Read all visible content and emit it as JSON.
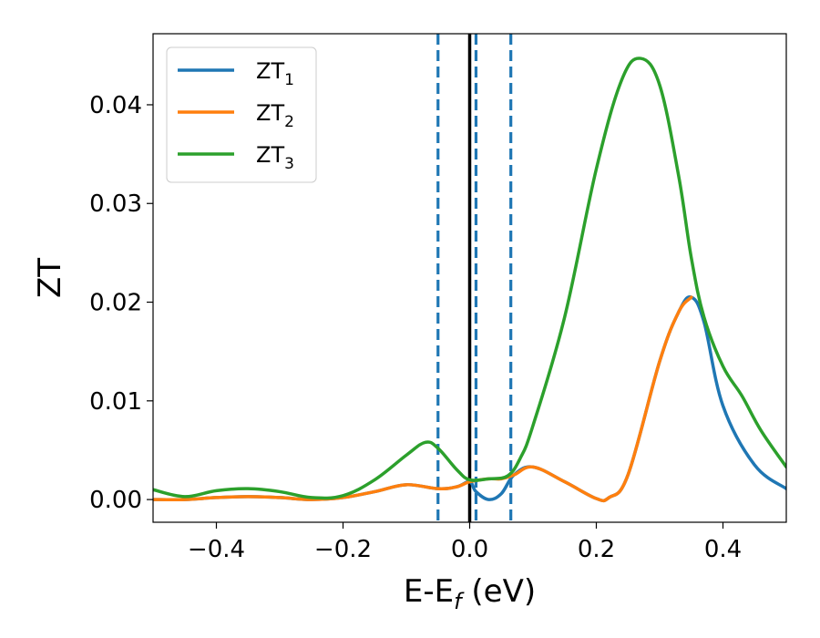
{
  "chart_data": {
    "type": "line",
    "xlabel": "E-E",
    "xlabel_sub": "f",
    "xlabel_unit": " (eV)",
    "ylabel": "ZT",
    "xlim": [
      -0.5,
      0.5
    ],
    "ylim": [
      -0.0023,
      0.0472
    ],
    "xticks": [
      -0.4,
      -0.2,
      0.0,
      0.2,
      0.4
    ],
    "xtick_labels": [
      "−0.4",
      "−0.2",
      "0.0",
      "0.2",
      "0.4"
    ],
    "yticks": [
      0.0,
      0.01,
      0.02,
      0.03,
      0.04
    ],
    "ytick_labels": [
      "0.00",
      "0.01",
      "0.02",
      "0.03",
      "0.04"
    ],
    "grid": false,
    "legend_position": "top-left",
    "vlines": [
      {
        "x": 0.0,
        "style": "solid",
        "color": "#000000"
      },
      {
        "x": -0.05,
        "style": "dashed",
        "color": "#1f77b4"
      },
      {
        "x": 0.01,
        "style": "dashed",
        "color": "#1f77b4"
      },
      {
        "x": 0.065,
        "style": "dashed",
        "color": "#1f77b4"
      }
    ],
    "series": [
      {
        "name": "ZT",
        "subscript": "1",
        "color": "#1f77b4",
        "x": [
          -0.5,
          -0.45,
          -0.4,
          -0.35,
          -0.3,
          -0.25,
          -0.2,
          -0.15,
          -0.1,
          -0.05,
          -0.02,
          0.0,
          0.01,
          0.03,
          0.05,
          0.07,
          0.1,
          0.15,
          0.2,
          0.22,
          0.25,
          0.3,
          0.33,
          0.35,
          0.37,
          0.4,
          0.45,
          0.5
        ],
        "y": [
          0.0,
          0.0,
          0.0002,
          0.0003,
          0.0002,
          0.0,
          0.0002,
          0.0008,
          0.0015,
          0.0011,
          0.0013,
          0.0018,
          0.0008,
          0.0,
          0.0006,
          0.0025,
          0.0033,
          0.0018,
          0.0001,
          0.0002,
          0.0025,
          0.014,
          0.019,
          0.0205,
          0.018,
          0.0095,
          0.0035,
          0.0011
        ]
      },
      {
        "name": "ZT",
        "subscript": "2",
        "color": "#ff7f0e",
        "x": [
          -0.5,
          -0.45,
          -0.4,
          -0.35,
          -0.3,
          -0.25,
          -0.2,
          -0.15,
          -0.1,
          -0.05,
          -0.02,
          0.0,
          0.03,
          0.05,
          0.07,
          0.1,
          0.15,
          0.2,
          0.22,
          0.25,
          0.3,
          0.33,
          0.35
        ],
        "y": [
          0.0,
          0.0,
          0.0002,
          0.0003,
          0.0002,
          0.0,
          0.0002,
          0.0008,
          0.0015,
          0.0011,
          0.0013,
          0.0018,
          0.0021,
          0.0021,
          0.0025,
          0.0033,
          0.0018,
          0.0001,
          0.0002,
          0.0025,
          0.014,
          0.019,
          0.0205
        ]
      },
      {
        "name": "ZT",
        "subscript": "3",
        "color": "#2ca02c",
        "x": [
          -0.5,
          -0.45,
          -0.4,
          -0.35,
          -0.3,
          -0.25,
          -0.2,
          -0.15,
          -0.1,
          -0.07,
          -0.05,
          -0.02,
          0.0,
          0.03,
          0.06,
          0.08,
          0.1,
          0.15,
          0.2,
          0.24,
          0.27,
          0.3,
          0.33,
          0.35,
          0.37,
          0.4,
          0.43,
          0.46,
          0.5
        ],
        "y": [
          0.001,
          0.0003,
          0.0009,
          0.0011,
          0.0008,
          0.0002,
          0.0004,
          0.002,
          0.0045,
          0.0058,
          0.0052,
          0.003,
          0.002,
          0.0021,
          0.0024,
          0.0042,
          0.0075,
          0.0185,
          0.0335,
          0.0425,
          0.0447,
          0.042,
          0.0328,
          0.0245,
          0.0185,
          0.0135,
          0.0105,
          0.007,
          0.0033
        ]
      }
    ]
  }
}
